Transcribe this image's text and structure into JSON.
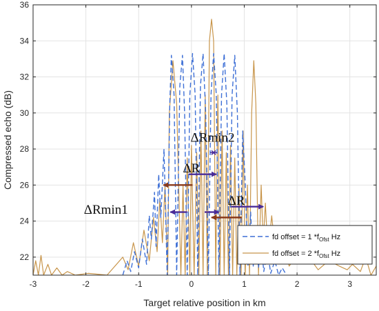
{
  "chart_data": {
    "type": "line",
    "title": "",
    "xlabel": "Target relative position in km",
    "ylabel": "Compressed echo (dB)",
    "xlim": [
      -3,
      3.5
    ],
    "ylim": [
      21,
      36
    ],
    "xticks": [
      -3,
      -2,
      -1,
      0,
      1,
      2,
      3
    ],
    "yticks": [
      22,
      24,
      26,
      28,
      30,
      32,
      34,
      36
    ],
    "grid": true,
    "legend": {
      "placement": "bottom-right",
      "entries": [
        {
          "main": "fd offset = 1 *f",
          "sub": "Ofst",
          "tail": " Hz"
        },
        {
          "main": "fd offset = 2 *f",
          "sub": "Ofst",
          "tail": " Hz"
        }
      ]
    },
    "series": [
      {
        "style": "dashed",
        "color": "#3d6fd6",
        "x": [
          -1.3,
          -1.22,
          -1.15,
          -1.08,
          -1.0,
          -0.93,
          -0.85,
          -0.8,
          -0.76,
          -0.7,
          -0.67,
          -0.62,
          -0.58,
          -0.52,
          -0.46,
          -0.41,
          -0.38,
          -0.33,
          -0.28,
          -0.22,
          -0.17,
          -0.13,
          -0.08,
          -0.03,
          0.02,
          0.07,
          0.12,
          0.17,
          0.22,
          0.27,
          0.32,
          0.37,
          0.42,
          0.47,
          0.52,
          0.57,
          0.62,
          0.67,
          0.72,
          0.77,
          0.82,
          0.87,
          0.92,
          0.97,
          1.02,
          1.07,
          1.12,
          1.17,
          1.22,
          1.27,
          1.32,
          1.37,
          1.44,
          1.5,
          1.58,
          1.65,
          1.72,
          1.8
        ],
        "y": [
          21.0,
          21.8,
          21.2,
          22.3,
          21.4,
          23.0,
          21.6,
          24.3,
          23.0,
          25.6,
          22.6,
          26.6,
          24.2,
          28.0,
          21.0,
          30.5,
          33.2,
          31.0,
          21.0,
          31.5,
          33.2,
          30.0,
          21.0,
          31.0,
          33.3,
          31.0,
          21.0,
          31.5,
          33.3,
          30.0,
          21.0,
          31.0,
          33.3,
          31.0,
          21.0,
          31.0,
          33.3,
          30.5,
          21.0,
          31.0,
          33.2,
          30.0,
          21.0,
          29.0,
          26.0,
          21.5,
          24.5,
          21.5,
          23.5,
          21.4,
          22.8,
          21.2,
          22.4,
          21.1,
          21.8,
          21.0,
          21.4,
          21.0
        ]
      },
      {
        "style": "solid",
        "color": "#c8954a",
        "x": [
          -3.0,
          -2.95,
          -2.9,
          -2.85,
          -2.8,
          -2.72,
          -2.65,
          -2.55,
          -2.45,
          -2.35,
          -2.2,
          -1.95,
          -1.6,
          -1.3,
          -1.2,
          -1.1,
          -1.0,
          -0.9,
          -0.8,
          -0.72,
          -0.65,
          -0.6,
          -0.55,
          -0.5,
          -0.45,
          -0.42,
          -0.35,
          -0.28,
          -0.2,
          -0.16,
          -0.12,
          -0.08,
          -0.03,
          0.0,
          0.05,
          0.1,
          0.14,
          0.18,
          0.22,
          0.26,
          0.3,
          0.34,
          0.38,
          0.42,
          0.46,
          0.5,
          0.54,
          0.58,
          0.62,
          0.66,
          0.7,
          0.74,
          0.78,
          0.82,
          0.86,
          0.9,
          0.94,
          0.98,
          1.02,
          1.06,
          1.1,
          1.14,
          1.18,
          1.22,
          1.27,
          1.32,
          1.36,
          1.4,
          1.45,
          1.52,
          1.6,
          1.7,
          1.85,
          2.1,
          2.4,
          2.6,
          2.8,
          2.95,
          3.05,
          3.2,
          3.3,
          3.4,
          3.5
        ],
        "y": [
          21.0,
          21.8,
          21.0,
          22.1,
          21.0,
          21.6,
          21.0,
          21.4,
          21.0,
          21.2,
          21.0,
          21.1,
          21.0,
          22.0,
          21.3,
          22.8,
          21.5,
          23.5,
          21.8,
          24.2,
          22.3,
          25.2,
          22.8,
          26.0,
          21.0,
          30.0,
          32.9,
          30.5,
          21.0,
          26.0,
          21.0,
          27.5,
          21.0,
          28.2,
          21.0,
          27.8,
          21.0,
          29.0,
          21.0,
          31.0,
          21.0,
          34.0,
          35.2,
          34.0,
          21.0,
          31.0,
          21.0,
          29.0,
          21.0,
          27.8,
          21.0,
          28.2,
          21.0,
          27.5,
          21.0,
          26.0,
          21.0,
          29.0,
          21.0,
          26.0,
          21.0,
          30.0,
          32.9,
          30.5,
          21.0,
          26.0,
          22.8,
          25.0,
          22.2,
          24.3,
          22.0,
          23.3,
          21.5,
          22.5,
          21.3,
          21.8,
          21.5,
          21.3,
          21.6,
          21.2,
          22.0,
          21.0,
          21.5
        ]
      }
    ],
    "annotations": [
      {
        "text": "ΔRmin2",
        "x": 0.4,
        "y": 28.4
      },
      {
        "text": "ΔR",
        "x": 0.0,
        "y": 26.7
      },
      {
        "text": "ΔR",
        "x": 0.85,
        "y": 24.9
      },
      {
        "text": "ΔRmin1",
        "x": -1.62,
        "y": 24.4
      }
    ],
    "arrows": [
      {
        "color": "#4a2c98",
        "x0": -0.05,
        "x1": 0.47,
        "y": 26.6
      },
      {
        "color": "#8a3a1a",
        "x0": 0.02,
        "x1": -0.53,
        "y": 26.0
      },
      {
        "color": "#4a2c98",
        "x0": 0.75,
        "x1": 1.36,
        "y": 24.8
      },
      {
        "color": "#8a3a1a",
        "x0": 0.95,
        "x1": 0.38,
        "y": 24.2
      },
      {
        "color": "#4a2c98",
        "x0": -0.08,
        "x1": -0.4,
        "y": 24.5
      },
      {
        "color": "#4a2c98",
        "x0": 0.25,
        "x1": 0.52,
        "y": 24.5
      }
    ],
    "marker": {
      "x": 0.42,
      "y": 27.8,
      "color": "#4a2c98"
    }
  }
}
